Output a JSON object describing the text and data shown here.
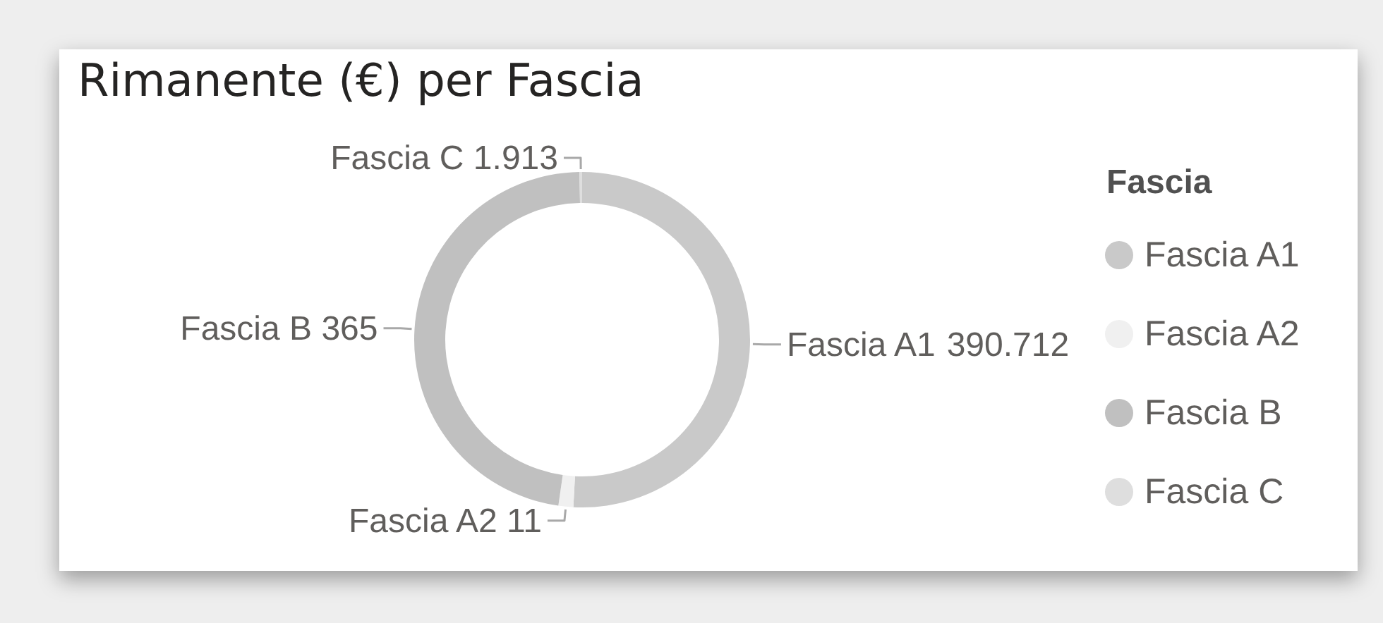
{
  "chart_data": {
    "type": "donut",
    "title": "Rimanente (€) per Fascia",
    "categories": [
      "Fascia A1",
      "Fascia A2",
      "Fascia B",
      "Fascia C"
    ],
    "values": [
      390.712,
      11,
      365,
      1.913
    ],
    "data_labels": true,
    "colors": [
      "#c9c9c9",
      "#f0f0f0",
      "#c0c0c0",
      "#dedede"
    ],
    "legend_title": "Fascia",
    "legend": "right"
  }
}
